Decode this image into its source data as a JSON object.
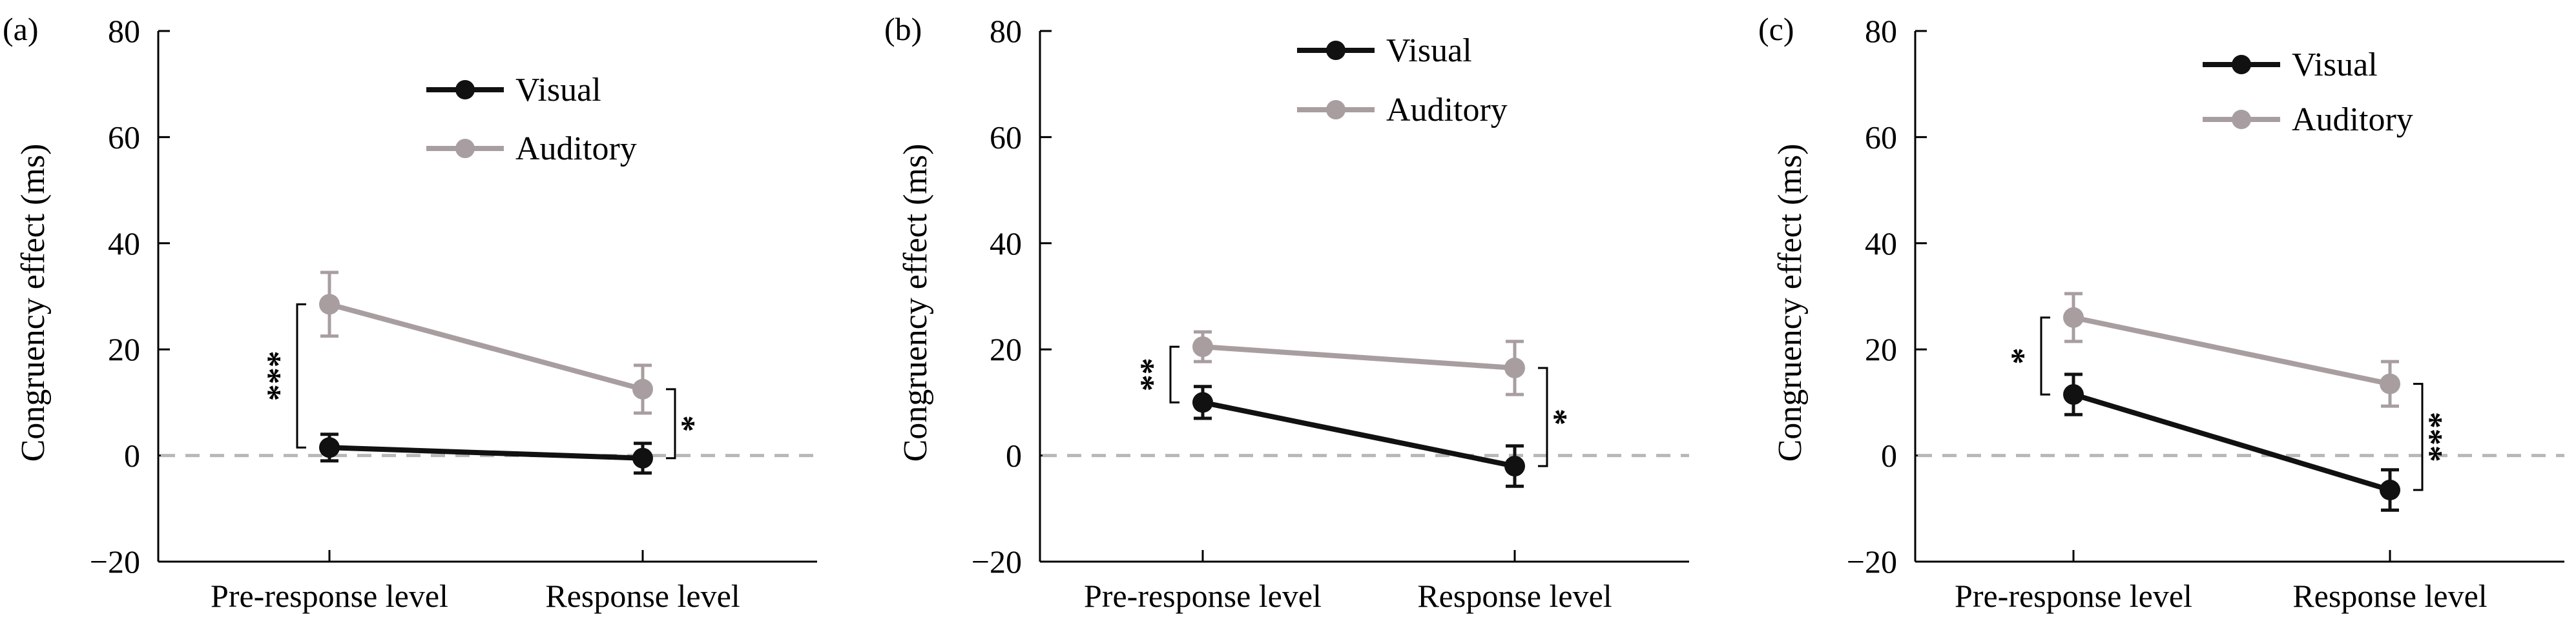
{
  "chart_data": [
    {
      "type": "line",
      "panel_label": "(a)",
      "ylabel": "Congruency effect (ms)",
      "categories": [
        "Pre-response level",
        "Response level"
      ],
      "ylim": [
        -20,
        80
      ],
      "yticks": [
        "−20",
        "0",
        "20",
        "40",
        "60",
        "80"
      ],
      "baseline": 0,
      "series": [
        {
          "name": "Visual",
          "values": [
            1.5,
            -0.5
          ],
          "errors": [
            2.5,
            2.8
          ]
        },
        {
          "name": "Auditory",
          "values": [
            28.5,
            12.5
          ],
          "errors": [
            6.0,
            4.5
          ]
        }
      ],
      "significance": [
        {
          "category": 0,
          "label": "***"
        },
        {
          "category": 1,
          "label": "*"
        }
      ]
    },
    {
      "type": "line",
      "panel_label": "(b)",
      "ylabel": "Congruency effect (ms)",
      "categories": [
        "Pre-response level",
        "Response level"
      ],
      "ylim": [
        -20,
        80
      ],
      "yticks": [
        "−20",
        "0",
        "20",
        "40",
        "60",
        "80"
      ],
      "baseline": 0,
      "series": [
        {
          "name": "Visual",
          "values": [
            10.0,
            -2.0
          ],
          "errors": [
            3.0,
            3.8
          ]
        },
        {
          "name": "Auditory",
          "values": [
            20.5,
            16.5
          ],
          "errors": [
            2.8,
            5.0
          ]
        }
      ],
      "significance": [
        {
          "category": 0,
          "label": "**"
        },
        {
          "category": 1,
          "label": "*"
        }
      ]
    },
    {
      "type": "line",
      "panel_label": "(c)",
      "ylabel": "Congruency effect (ms)",
      "categories": [
        "Pre-response level",
        "Response level"
      ],
      "ylim": [
        -20,
        80
      ],
      "yticks": [
        "−20",
        "0",
        "20",
        "40",
        "60",
        "80"
      ],
      "baseline": 0,
      "series": [
        {
          "name": "Visual",
          "values": [
            11.5,
            -6.5
          ],
          "errors": [
            3.8,
            3.8
          ]
        },
        {
          "name": "Auditory",
          "values": [
            26.0,
            13.5
          ],
          "errors": [
            4.5,
            4.2
          ]
        }
      ],
      "significance": [
        {
          "category": 0,
          "label": "*"
        },
        {
          "category": 1,
          "label": "***"
        }
      ]
    }
  ],
  "colors": {
    "visual": "#111111",
    "auditory": "#a89ea0",
    "baseline": "#b8b8b8",
    "axis": "#000000"
  }
}
